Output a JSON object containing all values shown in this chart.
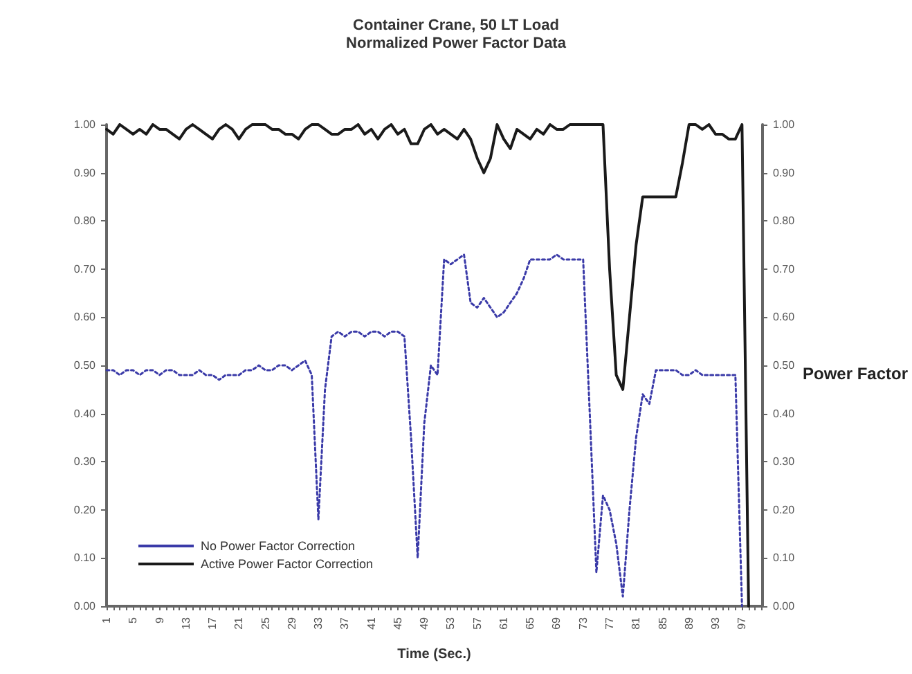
{
  "chart_data": {
    "type": "line",
    "title": "Container Crane, 50 LT Load",
    "subtitle": "Normalized Power Factor Data",
    "xlabel": "Time (Sec.)",
    "y2label": "Power Factor",
    "categories": [
      "1",
      null,
      null,
      null,
      "5",
      null,
      null,
      null,
      "9",
      null,
      null,
      null,
      "13",
      null,
      null,
      null,
      "17",
      null,
      null,
      null,
      "21",
      null,
      null,
      null,
      "25",
      null,
      null,
      null,
      "29",
      null,
      null,
      null,
      "33",
      null,
      null,
      null,
      "37",
      null,
      null,
      null,
      "41",
      null,
      null,
      null,
      "45",
      null,
      null,
      null,
      "49",
      null,
      null,
      null,
      "53",
      null,
      null,
      null,
      "57",
      null,
      null,
      null,
      "61",
      null,
      null,
      null,
      "65",
      null,
      null,
      null,
      "69",
      null,
      null,
      null,
      "73",
      null,
      null,
      null,
      "77",
      null,
      null,
      null,
      "81",
      null,
      null,
      null,
      "85",
      null,
      null,
      null,
      "89",
      null,
      null,
      null,
      "93",
      null,
      null,
      null,
      "97",
      null,
      null,
      null
    ],
    "series": [
      {
        "name": "No Power Factor Correction",
        "color": "#3a3aa8",
        "line_style": "dotted",
        "values": [
          0.49,
          0.49,
          0.48,
          0.49,
          0.49,
          0.48,
          0.49,
          0.49,
          0.48,
          0.49,
          0.49,
          0.48,
          0.48,
          0.48,
          0.49,
          0.48,
          0.48,
          0.47,
          0.48,
          0.48,
          0.48,
          0.49,
          0.49,
          0.5,
          0.49,
          0.49,
          0.5,
          0.5,
          0.49,
          0.5,
          0.51,
          0.48,
          0.18,
          0.45,
          0.56,
          0.57,
          0.56,
          0.57,
          0.57,
          0.56,
          0.57,
          0.57,
          0.56,
          0.57,
          0.57,
          0.56,
          0.35,
          0.1,
          0.38,
          0.5,
          0.48,
          0.72,
          0.71,
          0.72,
          0.73,
          0.63,
          0.62,
          0.64,
          0.62,
          0.6,
          0.61,
          0.63,
          0.65,
          0.68,
          0.72,
          0.72,
          0.72,
          0.72,
          0.73,
          0.72,
          0.72,
          0.72,
          0.72,
          0.4,
          0.07,
          0.23,
          0.2,
          0.13,
          0.02,
          0.2,
          0.35,
          0.44,
          0.42,
          0.49,
          0.49,
          0.49,
          0.49,
          0.48,
          0.48,
          0.49,
          0.48,
          0.48,
          0.48,
          0.48,
          0.48,
          0.48,
          0.0,
          null,
          null,
          null
        ]
      },
      {
        "name": "Active Power Factor Correction",
        "color": "#1a1a1a",
        "line_style": "solid",
        "values": [
          0.99,
          0.98,
          1.0,
          0.99,
          0.98,
          0.99,
          0.98,
          1.0,
          0.99,
          0.99,
          0.98,
          0.97,
          0.99,
          1.0,
          0.99,
          0.98,
          0.97,
          0.99,
          1.0,
          0.99,
          0.97,
          0.99,
          1.0,
          1.0,
          1.0,
          0.99,
          0.99,
          0.98,
          0.98,
          0.97,
          0.99,
          1.0,
          1.0,
          0.99,
          0.98,
          0.98,
          0.99,
          0.99,
          1.0,
          0.98,
          0.99,
          0.97,
          0.99,
          1.0,
          0.98,
          0.99,
          0.96,
          0.96,
          0.99,
          1.0,
          0.98,
          0.99,
          0.98,
          0.97,
          0.99,
          0.97,
          0.93,
          0.9,
          0.93,
          1.0,
          0.97,
          0.95,
          0.99,
          0.98,
          0.97,
          0.99,
          0.98,
          1.0,
          0.99,
          0.99,
          1.0,
          1.0,
          1.0,
          1.0,
          1.0,
          1.0,
          0.7,
          0.48,
          0.45,
          0.6,
          0.75,
          0.85,
          0.85,
          0.85,
          0.85,
          0.85,
          0.85,
          0.92,
          1.0,
          1.0,
          0.99,
          1.0,
          0.98,
          0.98,
          0.97,
          0.97,
          1.0,
          0.0,
          null,
          null
        ]
      }
    ],
    "ylim": [
      0,
      1
    ],
    "yticks": [
      {
        "value": 0,
        "label": "0.00"
      },
      {
        "value": 0.1,
        "label": "0.10"
      },
      {
        "value": 0.2,
        "label": "0.20"
      },
      {
        "value": 0.3,
        "label": "0.30"
      },
      {
        "value": 0.4,
        "label": "0.40"
      },
      {
        "value": 0.5,
        "label": "0.50"
      },
      {
        "value": 0.6,
        "label": "0.60"
      },
      {
        "value": 0.7,
        "label": "0.70"
      },
      {
        "value": 0.8,
        "label": "0.80"
      },
      {
        "value": 0.9,
        "label": "0.90"
      },
      {
        "value": 1,
        "label": "1.00"
      }
    ],
    "y2lim": [
      0,
      1
    ],
    "y2ticks": [
      {
        "value": 0,
        "label": "0.00"
      },
      {
        "value": 0.1,
        "label": "0.10"
      },
      {
        "value": 0.2,
        "label": "0.20"
      },
      {
        "value": 0.3,
        "label": "0.30"
      },
      {
        "value": 0.4,
        "label": "0.40"
      },
      {
        "value": 0.5,
        "label": "0.50"
      },
      {
        "value": 0.6,
        "label": "0.60"
      },
      {
        "value": 0.7,
        "label": "0.70"
      },
      {
        "value": 0.8,
        "label": "0.80"
      },
      {
        "value": 0.9,
        "label": "0.90"
      },
      {
        "value": 1,
        "label": "1.00"
      }
    ],
    "grid": false,
    "legend": "bottom left",
    "marker": "none"
  }
}
